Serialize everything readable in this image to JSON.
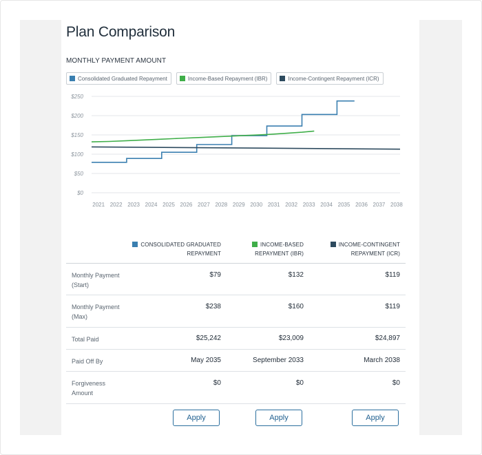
{
  "page": {
    "title": "Plan Comparison",
    "section_label": "MONTHLY PAYMENT AMOUNT"
  },
  "colors": {
    "graduated": "#3a7fb0",
    "ibr": "#3fae49",
    "icr": "#2d4a5e"
  },
  "legend": [
    {
      "label": "Consolidated Graduated Repayment",
      "color": "#3a7fb0"
    },
    {
      "label": "Income-Based Repayment (IBR)",
      "color": "#3fae49"
    },
    {
      "label": "Income-Contingent Repayment (ICR)",
      "color": "#2d4a5e"
    }
  ],
  "chart_data": {
    "type": "line",
    "title": "MONTHLY PAYMENT AMOUNT",
    "xlabel": "",
    "ylabel": "",
    "x_ticks": [
      "2021",
      "2022",
      "2023",
      "2024",
      "2025",
      "2026",
      "2027",
      "2028",
      "2029",
      "2030",
      "2031",
      "2032",
      "2033",
      "2034",
      "2035",
      "2036",
      "2037",
      "2038"
    ],
    "y_ticks": [
      "$0",
      "$50",
      "$100",
      "$150",
      "$200",
      "$250"
    ],
    "xlim": [
      2020.6,
      2038.2
    ],
    "ylim": [
      0,
      250
    ],
    "grid": true,
    "legend_position": "top-left",
    "series": [
      {
        "name": "Consolidated Graduated Repayment",
        "color": "#3a7fb0",
        "step": true,
        "points": [
          [
            2020.6,
            79
          ],
          [
            2022.6,
            79
          ],
          [
            2022.6,
            89
          ],
          [
            2024.6,
            89
          ],
          [
            2024.6,
            105
          ],
          [
            2026.6,
            105
          ],
          [
            2026.6,
            125
          ],
          [
            2028.6,
            125
          ],
          [
            2028.6,
            148
          ],
          [
            2030.6,
            148
          ],
          [
            2030.6,
            173
          ],
          [
            2032.6,
            173
          ],
          [
            2032.6,
            203
          ],
          [
            2034.6,
            203
          ],
          [
            2034.6,
            238
          ],
          [
            2035.6,
            238
          ]
        ]
      },
      {
        "name": "Income-Based Repayment (IBR)",
        "color": "#3fae49",
        "step": false,
        "points": [
          [
            2020.6,
            132
          ],
          [
            2021.6,
            133
          ],
          [
            2022.6,
            135
          ],
          [
            2023.6,
            137
          ],
          [
            2024.6,
            139
          ],
          [
            2025.6,
            141
          ],
          [
            2026.6,
            143
          ],
          [
            2027.6,
            145
          ],
          [
            2028.6,
            147
          ],
          [
            2029.6,
            149
          ],
          [
            2030.6,
            151
          ],
          [
            2031.6,
            154
          ],
          [
            2032.6,
            157
          ],
          [
            2033.3,
            160
          ]
        ]
      },
      {
        "name": "Income-Contingent Repayment (ICR)",
        "color": "#2d4a5e",
        "step": false,
        "points": [
          [
            2020.6,
            119
          ],
          [
            2038.2,
            113
          ]
        ]
      }
    ]
  },
  "table": {
    "headers": [
      {
        "line1": "CONSOLIDATED GRADUATED",
        "line2": "REPAYMENT",
        "color": "#3a7fb0"
      },
      {
        "line1": "INCOME-BASED",
        "line2": "REPAYMENT (IBR)",
        "color": "#3fae49"
      },
      {
        "line1": "INCOME-CONTINGENT",
        "line2": "REPAYMENT (ICR)",
        "color": "#2d4a5e"
      }
    ],
    "rows": [
      {
        "label_line1": "Monthly Payment",
        "label_line2": "(Start)",
        "values": [
          "$79",
          "$132",
          "$119"
        ]
      },
      {
        "label_line1": "Monthly Payment",
        "label_line2": "(Max)",
        "values": [
          "$238",
          "$160",
          "$119"
        ]
      },
      {
        "label_line1": "Total Paid",
        "label_line2": "",
        "values": [
          "$25,242",
          "$23,009",
          "$24,897"
        ]
      },
      {
        "label_line1": "Paid Off By",
        "label_line2": "",
        "values": [
          "May 2035",
          "September 2033",
          "March 2038"
        ]
      },
      {
        "label_line1": "Forgiveness",
        "label_line2": "Amount",
        "values": [
          "$0",
          "$0",
          "$0"
        ]
      }
    ],
    "apply_label": "Apply"
  }
}
